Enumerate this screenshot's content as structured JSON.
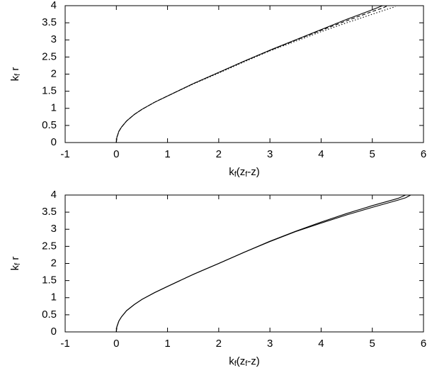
{
  "chart_data": [
    {
      "type": "line",
      "xlabel": [
        "k",
        "f",
        "(z",
        "f",
        "-z)"
      ],
      "ylabel": [
        "k",
        "f",
        " r"
      ],
      "xlim": [
        -1,
        6
      ],
      "ylim": [
        0,
        4
      ],
      "xticks": [
        -1,
        0,
        1,
        2,
        3,
        4,
        5,
        6
      ],
      "yticks": [
        0,
        0.5,
        1,
        1.5,
        2,
        2.5,
        3,
        3.5,
        4
      ],
      "x": [
        0,
        0.01,
        0.05,
        0.1,
        0.2,
        0.35,
        0.5,
        0.75,
        1,
        1.5,
        2,
        2.5,
        3,
        3.5,
        4,
        4.5,
        5,
        5.2,
        5.3,
        5.45
      ],
      "series": [
        {
          "color": "#000000",
          "dash": "solid",
          "values": [
            0,
            0.15,
            0.33,
            0.45,
            0.63,
            0.82,
            0.97,
            1.18,
            1.36,
            1.72,
            2.05,
            2.38,
            2.7,
            3.0,
            3.3,
            3.6,
            3.88,
            4.0,
            null,
            null
          ]
        },
        {
          "color": "#000000",
          "dash": "dashed",
          "values": [
            0,
            0.15,
            0.33,
            0.45,
            0.63,
            0.82,
            0.97,
            1.18,
            1.36,
            1.72,
            2.05,
            2.38,
            2.69,
            2.99,
            3.28,
            3.56,
            3.83,
            3.93,
            4.0,
            null
          ]
        },
        {
          "color": "#000000",
          "dash": "dotted",
          "values": [
            0,
            0.15,
            0.33,
            0.45,
            0.63,
            0.82,
            0.97,
            1.18,
            1.36,
            1.71,
            2.03,
            2.36,
            2.68,
            2.96,
            3.24,
            3.5,
            3.75,
            3.85,
            3.9,
            3.97
          ]
        }
      ]
    },
    {
      "type": "line",
      "xlabel": [
        "k",
        "f",
        "(z",
        "f",
        "-z)"
      ],
      "ylabel": [
        "k",
        "f",
        " r"
      ],
      "xlim": [
        -1,
        6
      ],
      "ylim": [
        0,
        4
      ],
      "xticks": [
        -1,
        0,
        1,
        2,
        3,
        4,
        5,
        6
      ],
      "yticks": [
        0,
        0.5,
        1,
        1.5,
        2,
        2.5,
        3,
        3.5,
        4
      ],
      "x": [
        0,
        0.01,
        0.05,
        0.1,
        0.2,
        0.35,
        0.5,
        0.75,
        1,
        1.5,
        2,
        2.5,
        3,
        3.5,
        4,
        4.5,
        5,
        5.5,
        5.65,
        5.75
      ],
      "series": [
        {
          "color": "#000000",
          "dash": "solid",
          "values": [
            0,
            0.15,
            0.32,
            0.44,
            0.62,
            0.8,
            0.95,
            1.15,
            1.33,
            1.68,
            2.0,
            2.33,
            2.65,
            2.94,
            3.21,
            3.46,
            3.69,
            3.9,
            4.0,
            null
          ]
        },
        {
          "color": "#000000",
          "dash": "solid",
          "values": [
            0,
            0.15,
            0.32,
            0.44,
            0.62,
            0.8,
            0.95,
            1.15,
            1.33,
            1.68,
            2.0,
            2.33,
            2.64,
            2.93,
            3.18,
            3.42,
            3.64,
            3.85,
            3.92,
            4.0
          ]
        }
      ]
    }
  ]
}
